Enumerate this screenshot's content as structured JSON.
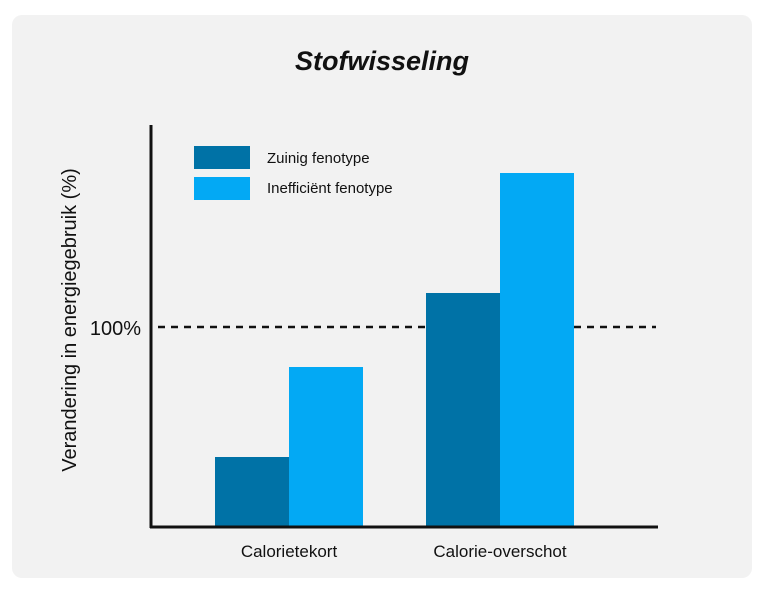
{
  "chart_data": {
    "type": "bar",
    "title": "Stofwisseling",
    "xlabel": "",
    "ylabel": "Verandering in energiegebruik (%)",
    "categories": [
      "Calorietekort",
      "Calorie-overschot"
    ],
    "series": [
      {
        "name": "Zuinig fenotype",
        "color": "#0072a6",
        "values": [
          35,
          117
        ]
      },
      {
        "name": "Inefficiënt fenotype",
        "color": "#03a9f4",
        "values": [
          80,
          177
        ]
      }
    ],
    "ylim": [
      0,
      200
    ],
    "reference_line": {
      "value": 100,
      "label": "100%",
      "style": "dashed"
    },
    "grid": false,
    "legend": "top-left"
  }
}
